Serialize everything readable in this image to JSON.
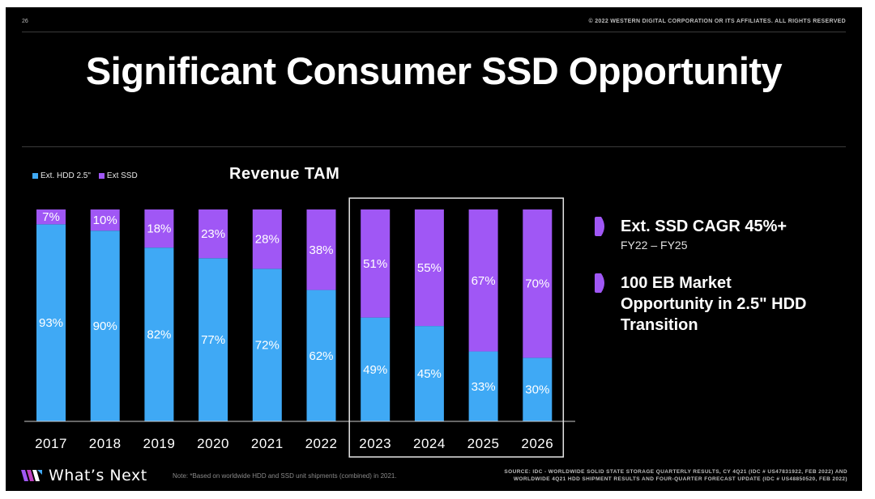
{
  "header": {
    "page_number": "26",
    "copyright": "© 2022 WESTERN DIGITAL CORPORATION OR ITS AFFILIATES. ALL RIGHTS RESERVED"
  },
  "title": "Significant Consumer SSD Opportunity",
  "chart_data": {
    "type": "bar",
    "stacked": true,
    "title": "Revenue TAM",
    "categories": [
      "2017",
      "2018",
      "2019",
      "2020",
      "2021",
      "2022",
      "2023",
      "2024",
      "2025",
      "2026"
    ],
    "series": [
      {
        "name": "Ext. HDD 2.5\"",
        "values": [
          93,
          90,
          82,
          77,
          72,
          62,
          49,
          45,
          33,
          30
        ],
        "labels": [
          "93%",
          "90%",
          "82%",
          "77%",
          "72%",
          "62%",
          "49%",
          "45%",
          "33%",
          "30%"
        ],
        "color": "#3fa9f5"
      },
      {
        "name": "Ext SSD",
        "values": [
          7,
          10,
          18,
          23,
          28,
          38,
          51,
          55,
          67,
          70
        ],
        "labels": [
          "7%",
          "10%",
          "18%",
          "23%",
          "28%",
          "38%",
          "51%",
          "55%",
          "67%",
          "70%"
        ],
        "color": "#a057f5"
      }
    ],
    "ylim": [
      0,
      100
    ],
    "highlighted_categories": [
      "2023",
      "2024",
      "2025",
      "2026"
    ],
    "legend_position": "top-left"
  },
  "bullets": [
    {
      "text": "Ext. SSD CAGR 45%+",
      "sub": "FY22 – FY25"
    },
    {
      "text": "100 EB Market Opportunity in 2.5\" HDD Transition",
      "sub": ""
    }
  ],
  "footer": {
    "logo_text": "What’s Next",
    "note": "Note: *Based on worldwide HDD and SSD unit shipments (combined) in 2021.",
    "source_line1": "SOURCE: IDC - WORLDWIDE SOLID STATE STORAGE QUARTERLY RESULTS, CY 4Q21 (IDC # US47831922, FEB 2022) AND",
    "source_line2": "WORLDWIDE 4Q21 HDD SHIPMENT RESULTS AND FOUR-QUARTER FORECAST UPDATE (IDC # US48850520, FEB 2022)"
  },
  "colors": {
    "hdd": "#3fa9f5",
    "ssd": "#a057f5",
    "background": "#000000",
    "bullet": "#a057f5"
  }
}
